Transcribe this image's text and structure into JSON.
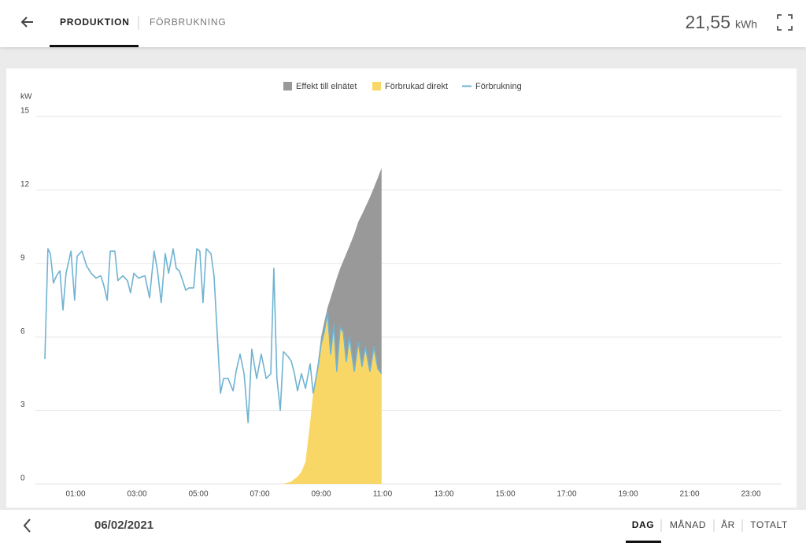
{
  "header": {
    "tabs": [
      "PRODUKTION",
      "FÖRBRUKNING"
    ],
    "total": "21,55",
    "unit": "kWh"
  },
  "chart_data": {
    "type": "stacked-area-line",
    "y_label": "kW",
    "x": [
      0,
      0.1,
      0.18,
      0.28,
      0.38,
      0.49,
      0.59,
      0.69,
      0.85,
      0.97,
      1.05,
      1.21,
      1.36,
      1.51,
      1.67,
      1.82,
      1.92,
      2.03,
      2.13,
      2.28,
      2.38,
      2.54,
      2.69,
      2.79,
      2.9,
      3.05,
      3.26,
      3.41,
      3.56,
      3.67,
      3.79,
      3.92,
      4.03,
      4.18,
      4.28,
      4.38,
      4.49,
      4.59,
      4.69,
      4.85,
      4.95,
      5.05,
      5.15,
      5.26,
      5.41,
      5.51,
      5.62,
      5.72,
      5.82,
      5.97,
      6.13,
      6.23,
      6.36,
      6.49,
      6.62,
      6.74,
      6.9,
      7.05,
      7.21,
      7.36,
      7.46,
      7.56,
      7.67,
      7.77,
      7.92,
      8.03,
      8.13,
      8.23,
      8.36,
      8.49,
      8.64,
      8.74,
      8.9,
      9.0,
      9.1,
      9.21,
      9.31,
      9.41,
      9.51,
      9.62,
      9.72,
      9.82,
      9.92,
      10.08,
      10.21,
      10.33,
      10.44,
      10.59,
      10.72,
      10.85,
      10.97
    ],
    "series": [
      {
        "name": "Effekt till elnätet",
        "color": "#999999",
        "kind": "area",
        "values": [
          null,
          null,
          null,
          null,
          null,
          null,
          null,
          null,
          null,
          null,
          null,
          null,
          null,
          null,
          null,
          null,
          null,
          null,
          null,
          null,
          null,
          null,
          null,
          null,
          null,
          null,
          null,
          null,
          null,
          null,
          null,
          null,
          null,
          null,
          null,
          null,
          null,
          null,
          null,
          null,
          null,
          null,
          null,
          null,
          null,
          null,
          null,
          null,
          null,
          null,
          null,
          null,
          null,
          null,
          null,
          null,
          null,
          null,
          null,
          null,
          null,
          null,
          null,
          null,
          null,
          null,
          null,
          null,
          null,
          null,
          null,
          0,
          0.2,
          0.3,
          0.4,
          0.2,
          2.3,
          1.5,
          3.8,
          2.4,
          2.9,
          4.4,
          3.7,
          5.6,
          4.9,
          6.2,
          5.7,
          7.1,
          6.5,
          7.8,
          8.4
        ]
      },
      {
        "name": "Förbrukad direkt",
        "color": "#f9d766",
        "kind": "area",
        "values": [
          null,
          null,
          null,
          null,
          null,
          null,
          null,
          null,
          null,
          null,
          null,
          null,
          null,
          null,
          null,
          null,
          null,
          null,
          null,
          null,
          null,
          null,
          null,
          null,
          null,
          null,
          null,
          null,
          null,
          null,
          null,
          null,
          null,
          null,
          null,
          null,
          null,
          null,
          null,
          null,
          null,
          null,
          null,
          null,
          null,
          null,
          null,
          null,
          null,
          null,
          null,
          null,
          null,
          null,
          null,
          null,
          null,
          null,
          null,
          null,
          null,
          null,
          0,
          0,
          0.05,
          0.1,
          0.2,
          0.3,
          0.5,
          0.9,
          2.5,
          3.7,
          4.8,
          5.7,
          6.2,
          7.0,
          5.3,
          6.5,
          4.6,
          6.4,
          6.2,
          5.0,
          6.0,
          4.6,
          5.8,
          4.8,
          5.6,
          4.6,
          5.6,
          4.7,
          4.5
        ]
      },
      {
        "name": "Förbrukning",
        "color": "#6fb3d2",
        "kind": "line",
        "values": [
          5.1,
          9.6,
          9.4,
          8.2,
          8.5,
          8.7,
          7.1,
          8.6,
          9.5,
          7.5,
          9.3,
          9.5,
          8.9,
          8.6,
          8.4,
          8.5,
          8.1,
          7.5,
          9.5,
          9.5,
          8.3,
          8.5,
          8.3,
          7.8,
          8.6,
          8.4,
          8.5,
          7.6,
          9.5,
          8.7,
          7.4,
          9.4,
          8.6,
          9.6,
          8.8,
          8.7,
          8.3,
          7.9,
          8.0,
          8.0,
          9.6,
          9.5,
          7.4,
          9.6,
          9.4,
          8.5,
          6.0,
          3.7,
          4.3,
          4.3,
          3.8,
          4.6,
          5.3,
          4.5,
          2.5,
          5.5,
          4.3,
          5.3,
          4.3,
          4.5,
          8.8,
          4.3,
          3.0,
          5.4,
          5.2,
          5.0,
          4.5,
          3.8,
          4.5,
          3.9,
          4.9,
          3.7,
          4.8,
          5.7,
          6.2,
          7.0,
          5.3,
          6.5,
          4.6,
          6.4,
          6.2,
          5.0,
          6.0,
          4.6,
          5.8,
          4.8,
          5.6,
          4.6,
          5.6,
          4.7,
          4.5
        ]
      }
    ],
    "stack_order": [
      1,
      0
    ],
    "xlim": [
      0,
      24
    ],
    "xticks": [
      {
        "value": 1,
        "label": "01:00"
      },
      {
        "value": 3,
        "label": "03:00"
      },
      {
        "value": 5,
        "label": "05:00"
      },
      {
        "value": 7,
        "label": "07:00"
      },
      {
        "value": 9,
        "label": "09:00"
      },
      {
        "value": 11,
        "label": "11:00"
      },
      {
        "value": 13,
        "label": "13:00"
      },
      {
        "value": 15,
        "label": "15:00"
      },
      {
        "value": 17,
        "label": "17:00"
      },
      {
        "value": 19,
        "label": "19:00"
      },
      {
        "value": 21,
        "label": "21:00"
      },
      {
        "value": 23,
        "label": "23:00"
      }
    ],
    "ylim": [
      0,
      15
    ],
    "yticks": [
      0,
      3,
      6,
      9,
      12,
      15
    ],
    "grid": true
  },
  "footer": {
    "date": "06/02/2021",
    "periods": [
      "DAG",
      "MÅNAD",
      "ÅR",
      "TOTALT"
    ]
  }
}
